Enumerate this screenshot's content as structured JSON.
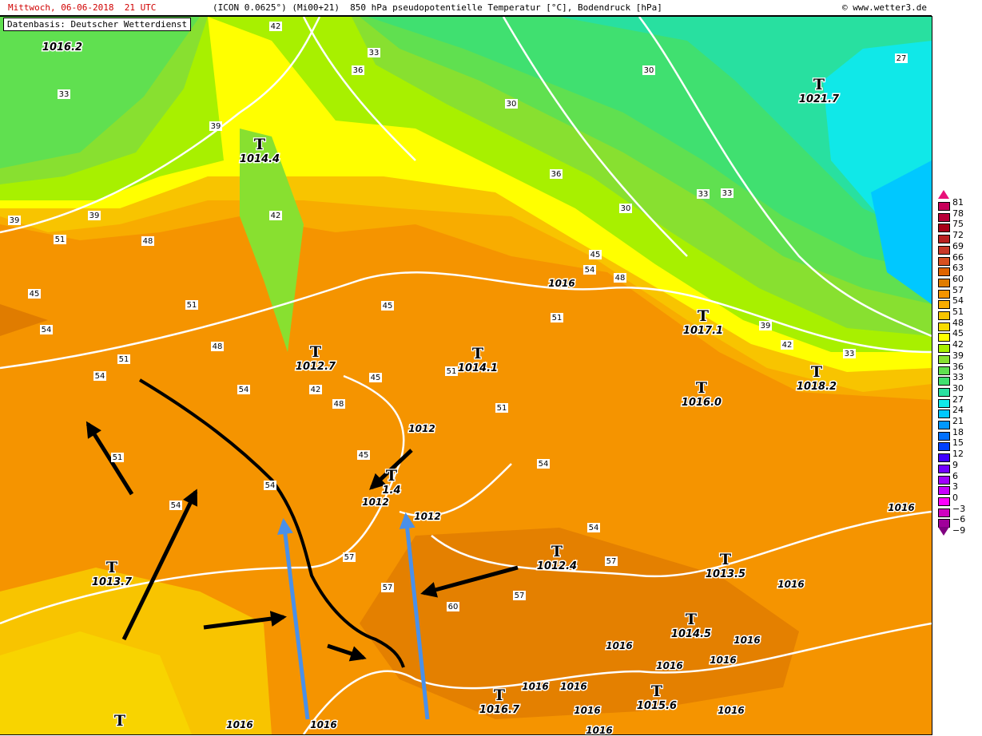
{
  "header": {
    "date_label": "Mittwoch, 06-06-2018  21 UTC",
    "description": "(ICON 0.0625°) (Mi00+21)  850 hPa pseudopotentielle Temperatur [°C], Bodendruck [hPa]",
    "copyright": "© www.wetter3.de"
  },
  "source_label": "Datenbasis: Deutscher Wetterdienst",
  "colors": {
    "date": "#d00000",
    "isobar": "#ffffff",
    "front": "#000000",
    "arrow_black": "#000000",
    "arrow_blue": "#4a90e8"
  },
  "legend": {
    "top_arrow_color": "#e8107a",
    "bottom_arrow_color": "#800080",
    "items": [
      {
        "value": "81",
        "color": "#c8005a"
      },
      {
        "value": "78",
        "color": "#b80038"
      },
      {
        "value": "75",
        "color": "#a80018"
      },
      {
        "value": "72",
        "color": "#b82020"
      },
      {
        "value": "69",
        "color": "#c83828"
      },
      {
        "value": "66",
        "color": "#d85020"
      },
      {
        "value": "63",
        "color": "#e06400"
      },
      {
        "value": "60",
        "color": "#e07c00"
      },
      {
        "value": "57",
        "color": "#f59400"
      },
      {
        "value": "54",
        "color": "#f8ac00"
      },
      {
        "value": "51",
        "color": "#f8c400"
      },
      {
        "value": "48",
        "color": "#f8dc00"
      },
      {
        "value": "45",
        "color": "#ffff00"
      },
      {
        "value": "42",
        "color": "#a8f000"
      },
      {
        "value": "39",
        "color": "#88e030"
      },
      {
        "value": "36",
        "color": "#60e050"
      },
      {
        "value": "33",
        "color": "#40e070"
      },
      {
        "value": "30",
        "color": "#28e0a0"
      },
      {
        "value": "27",
        "color": "#10e8e8"
      },
      {
        "value": "24",
        "color": "#00c8ff"
      },
      {
        "value": "21",
        "color": "#0098ff"
      },
      {
        "value": "18",
        "color": "#0070ff"
      },
      {
        "value": "15",
        "color": "#0040ff"
      },
      {
        "value": "12",
        "color": "#4000ff"
      },
      {
        "value": "9",
        "color": "#7000ff"
      },
      {
        "value": "6",
        "color": "#a000ff"
      },
      {
        "value": "3",
        "color": "#c800ff"
      },
      {
        "value": "0",
        "color": "#ff00ff"
      },
      {
        "value": "−3",
        "color": "#d000c0"
      },
      {
        "value": "−6",
        "color": "#a0009a"
      },
      {
        "value": "−9",
        "color": ""
      }
    ]
  },
  "pressure_centers": [
    {
      "label": "1016.2",
      "mark": ""
    },
    {
      "label": "1014.4",
      "mark": "T"
    },
    {
      "label": "1021.7",
      "mark": "T"
    },
    {
      "label": "1017.1",
      "mark": "T"
    },
    {
      "label": "1012.7",
      "mark": "T"
    },
    {
      "label": "1014.1",
      "mark": "T"
    },
    {
      "label": "1018.2",
      "mark": "T"
    },
    {
      "label": "1016.0",
      "mark": "T"
    },
    {
      "label": "1.4",
      "mark": "T"
    },
    {
      "label": "1013.7",
      "mark": "T"
    },
    {
      "label": "1012.4",
      "mark": "T"
    },
    {
      "label": "1013.5",
      "mark": "T"
    },
    {
      "label": "1014.5",
      "mark": "T"
    },
    {
      "label": "1015.6",
      "mark": "T"
    },
    {
      "label": "1016.7",
      "mark": "T"
    },
    {
      "label": "",
      "mark": "T"
    }
  ],
  "isobar_labels": [
    "1016",
    "1012",
    "1012",
    "1012",
    "1016",
    "1016",
    "1016",
    "1016",
    "1016",
    "1016",
    "1016",
    "1016",
    "1016",
    "1016",
    "1016",
    "1016",
    "1016"
  ],
  "temp_labels": [
    "33",
    "42",
    "36",
    "33",
    "30",
    "30",
    "27",
    "33",
    "39",
    "39",
    "39",
    "42",
    "45",
    "48",
    "51",
    "54",
    "51",
    "54",
    "48",
    "51",
    "54",
    "54",
    "51",
    "54",
    "57",
    "57",
    "60",
    "57",
    "57",
    "54",
    "54",
    "51",
    "51",
    "45",
    "42",
    "45",
    "48",
    "45",
    "51",
    "54",
    "48",
    "45",
    "39",
    "42",
    "33",
    "36",
    "30",
    "33"
  ]
}
